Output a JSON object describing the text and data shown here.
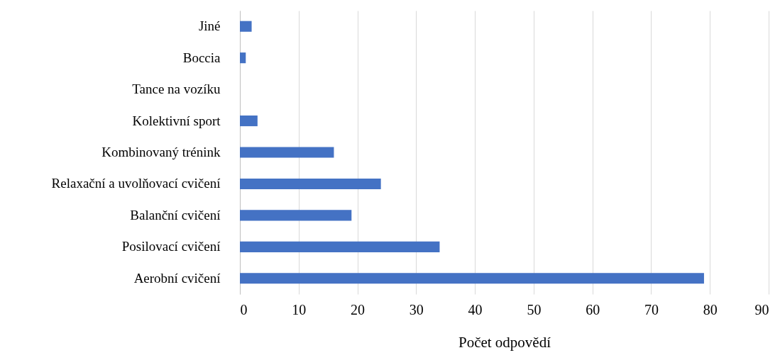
{
  "chart_data": {
    "type": "bar",
    "orientation": "horizontal",
    "xlabel": "Počet odpovědí",
    "categories": [
      "Jiné",
      "Boccia",
      "Tance na vozíku",
      "Kolektivní sport",
      "Kombinovaný trénink",
      "Relaxační a uvolňovací cvičení",
      "Balanční cvičení",
      "Posilovací cvičení",
      "Aerobní cvičení"
    ],
    "values": [
      2,
      1,
      0,
      3,
      16,
      24,
      19,
      34,
      79
    ],
    "color": "#4472c4",
    "xlim": [
      0,
      90
    ],
    "xticks": [
      0,
      10,
      20,
      30,
      40,
      50,
      60,
      70,
      80,
      90
    ],
    "grid": "x"
  }
}
